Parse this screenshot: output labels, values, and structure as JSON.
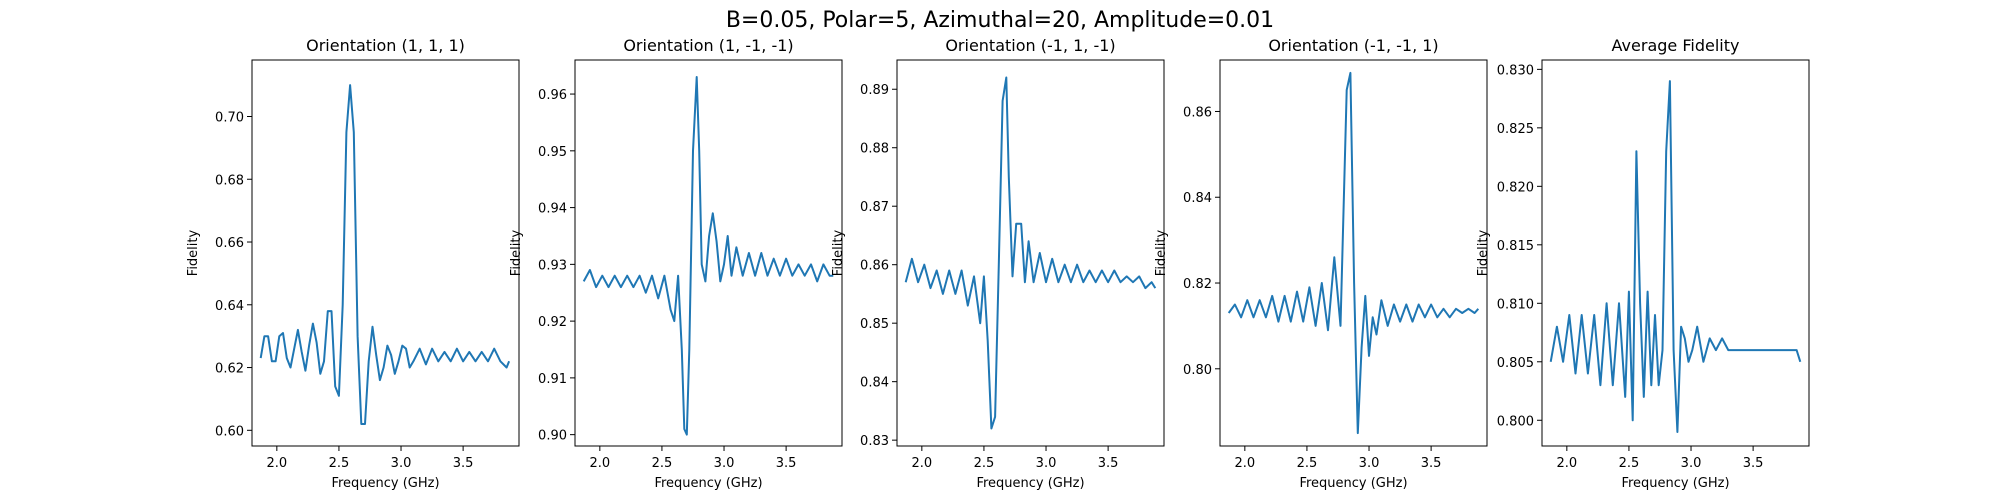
{
  "figure": {
    "suptitle": "B=0.05, Polar=5, Azimuthal=20, Amplitude=0.01",
    "line_color": "#1f77b4"
  },
  "chart_data": [
    {
      "type": "line",
      "title": "Orientation (1, 1, 1)",
      "xlabel": "Frequency (GHz)",
      "ylabel": "Fidelity",
      "xlim": [
        1.8,
        3.95
      ],
      "ylim": [
        0.595,
        0.718
      ],
      "xticks": [
        2.0,
        2.5,
        3.0,
        3.5
      ],
      "yticks": [
        0.6,
        0.62,
        0.64,
        0.66,
        0.68,
        0.7
      ],
      "ytick_labels": [
        "0.60",
        "0.62",
        "0.64",
        "0.66",
        "0.68",
        "0.70"
      ],
      "grid": false,
      "x": [
        1.87,
        1.9,
        1.93,
        1.96,
        1.99,
        2.02,
        2.05,
        2.08,
        2.11,
        2.14,
        2.17,
        2.2,
        2.23,
        2.26,
        2.29,
        2.32,
        2.35,
        2.38,
        2.41,
        2.44,
        2.47,
        2.5,
        2.53,
        2.56,
        2.59,
        2.62,
        2.65,
        2.68,
        2.71,
        2.74,
        2.77,
        2.8,
        2.83,
        2.86,
        2.89,
        2.92,
        2.95,
        2.98,
        3.01,
        3.04,
        3.07,
        3.1,
        3.15,
        3.2,
        3.25,
        3.3,
        3.35,
        3.4,
        3.45,
        3.5,
        3.55,
        3.6,
        3.65,
        3.7,
        3.75,
        3.8,
        3.85,
        3.87
      ],
      "y": [
        0.623,
        0.63,
        0.63,
        0.622,
        0.622,
        0.63,
        0.631,
        0.623,
        0.62,
        0.626,
        0.632,
        0.625,
        0.619,
        0.627,
        0.634,
        0.628,
        0.618,
        0.622,
        0.638,
        0.638,
        0.614,
        0.611,
        0.64,
        0.695,
        0.71,
        0.695,
        0.63,
        0.602,
        0.602,
        0.622,
        0.633,
        0.624,
        0.616,
        0.62,
        0.627,
        0.624,
        0.618,
        0.622,
        0.627,
        0.626,
        0.62,
        0.622,
        0.626,
        0.621,
        0.626,
        0.622,
        0.625,
        0.622,
        0.626,
        0.622,
        0.625,
        0.622,
        0.625,
        0.622,
        0.626,
        0.622,
        0.62,
        0.622
      ]
    },
    {
      "type": "line",
      "title": "Orientation (1, -1, -1)",
      "xlabel": "Frequency (GHz)",
      "ylabel": "Fidelity",
      "xlim": [
        1.8,
        3.95
      ],
      "ylim": [
        0.898,
        0.966
      ],
      "xticks": [
        2.0,
        2.5,
        3.0,
        3.5
      ],
      "yticks": [
        0.9,
        0.91,
        0.92,
        0.93,
        0.94,
        0.95,
        0.96
      ],
      "ytick_labels": [
        "0.90",
        "0.91",
        "0.92",
        "0.93",
        "0.94",
        "0.95",
        "0.96"
      ],
      "grid": false,
      "x": [
        1.87,
        1.92,
        1.97,
        2.02,
        2.07,
        2.12,
        2.17,
        2.22,
        2.27,
        2.32,
        2.37,
        2.42,
        2.47,
        2.52,
        2.57,
        2.6,
        2.63,
        2.66,
        2.68,
        2.7,
        2.72,
        2.75,
        2.78,
        2.8,
        2.82,
        2.85,
        2.88,
        2.91,
        2.94,
        2.97,
        3.0,
        3.03,
        3.06,
        3.1,
        3.15,
        3.2,
        3.25,
        3.3,
        3.35,
        3.4,
        3.45,
        3.5,
        3.55,
        3.6,
        3.65,
        3.7,
        3.75,
        3.8,
        3.85,
        3.88
      ],
      "y": [
        0.927,
        0.929,
        0.926,
        0.928,
        0.926,
        0.928,
        0.926,
        0.928,
        0.926,
        0.928,
        0.925,
        0.928,
        0.924,
        0.928,
        0.922,
        0.92,
        0.928,
        0.915,
        0.901,
        0.9,
        0.915,
        0.95,
        0.963,
        0.95,
        0.93,
        0.927,
        0.935,
        0.939,
        0.934,
        0.927,
        0.93,
        0.935,
        0.928,
        0.933,
        0.928,
        0.932,
        0.928,
        0.932,
        0.928,
        0.931,
        0.928,
        0.931,
        0.928,
        0.93,
        0.928,
        0.93,
        0.927,
        0.93,
        0.928,
        0.928
      ]
    },
    {
      "type": "line",
      "title": "Orientation (-1, 1, -1)",
      "xlabel": "Frequency (GHz)",
      "ylabel": "Fidelity",
      "xlim": [
        1.8,
        3.95
      ],
      "ylim": [
        0.829,
        0.895
      ],
      "xticks": [
        2.0,
        2.5,
        3.0,
        3.5
      ],
      "yticks": [
        0.83,
        0.84,
        0.85,
        0.86,
        0.87,
        0.88,
        0.89
      ],
      "ytick_labels": [
        "0.83",
        "0.84",
        "0.85",
        "0.86",
        "0.87",
        "0.88",
        "0.89"
      ],
      "grid": false,
      "x": [
        1.87,
        1.92,
        1.97,
        2.02,
        2.07,
        2.12,
        2.17,
        2.22,
        2.27,
        2.32,
        2.37,
        2.42,
        2.47,
        2.5,
        2.53,
        2.56,
        2.59,
        2.62,
        2.65,
        2.68,
        2.7,
        2.73,
        2.76,
        2.8,
        2.83,
        2.86,
        2.9,
        2.95,
        3.0,
        3.05,
        3.1,
        3.15,
        3.2,
        3.25,
        3.3,
        3.35,
        3.4,
        3.45,
        3.5,
        3.55,
        3.6,
        3.65,
        3.7,
        3.75,
        3.8,
        3.85,
        3.88
      ],
      "y": [
        0.857,
        0.861,
        0.857,
        0.86,
        0.856,
        0.859,
        0.855,
        0.859,
        0.855,
        0.859,
        0.853,
        0.858,
        0.85,
        0.858,
        0.847,
        0.832,
        0.834,
        0.86,
        0.888,
        0.892,
        0.875,
        0.858,
        0.867,
        0.867,
        0.857,
        0.864,
        0.857,
        0.862,
        0.857,
        0.861,
        0.857,
        0.86,
        0.857,
        0.86,
        0.857,
        0.859,
        0.857,
        0.859,
        0.857,
        0.859,
        0.857,
        0.858,
        0.857,
        0.858,
        0.856,
        0.857,
        0.856
      ]
    },
    {
      "type": "line",
      "title": "Orientation (-1, -1, 1)",
      "xlabel": "Frequency (GHz)",
      "ylabel": "Fidelity",
      "xlim": [
        1.8,
        3.95
      ],
      "ylim": [
        0.782,
        0.872
      ],
      "xticks": [
        2.0,
        2.5,
        3.0,
        3.5
      ],
      "yticks": [
        0.8,
        0.82,
        0.84,
        0.86
      ],
      "ytick_labels": [
        "0.80",
        "0.82",
        "0.84",
        "0.86"
      ],
      "grid": false,
      "x": [
        1.87,
        1.92,
        1.97,
        2.02,
        2.07,
        2.12,
        2.17,
        2.22,
        2.27,
        2.32,
        2.37,
        2.42,
        2.47,
        2.52,
        2.57,
        2.62,
        2.67,
        2.72,
        2.77,
        2.82,
        2.85,
        2.88,
        2.91,
        2.94,
        2.97,
        3.0,
        3.03,
        3.06,
        3.1,
        3.15,
        3.2,
        3.25,
        3.3,
        3.35,
        3.4,
        3.45,
        3.5,
        3.55,
        3.6,
        3.65,
        3.7,
        3.75,
        3.8,
        3.85,
        3.88
      ],
      "y": [
        0.813,
        0.815,
        0.812,
        0.816,
        0.812,
        0.816,
        0.812,
        0.817,
        0.811,
        0.817,
        0.811,
        0.818,
        0.811,
        0.819,
        0.81,
        0.82,
        0.809,
        0.826,
        0.81,
        0.865,
        0.869,
        0.82,
        0.785,
        0.805,
        0.817,
        0.803,
        0.812,
        0.808,
        0.816,
        0.81,
        0.815,
        0.811,
        0.815,
        0.811,
        0.815,
        0.812,
        0.815,
        0.812,
        0.814,
        0.812,
        0.814,
        0.813,
        0.814,
        0.813,
        0.814
      ]
    },
    {
      "type": "line",
      "title": "Average Fidelity",
      "xlabel": "Frequency (GHz)",
      "ylabel": "Fidelity",
      "xlim": [
        1.8,
        3.95
      ],
      "ylim": [
        0.7978,
        0.8308
      ],
      "xticks": [
        2.0,
        2.5,
        3.0,
        3.5
      ],
      "yticks": [
        0.8,
        0.805,
        0.81,
        0.815,
        0.82,
        0.825,
        0.83
      ],
      "ytick_labels": [
        "0.800",
        "0.805",
        "0.810",
        "0.815",
        "0.820",
        "0.825",
        "0.830"
      ],
      "grid": false,
      "x": [
        1.87,
        1.92,
        1.97,
        2.02,
        2.07,
        2.12,
        2.17,
        2.22,
        2.27,
        2.32,
        2.37,
        2.42,
        2.47,
        2.5,
        2.53,
        2.56,
        2.59,
        2.62,
        2.65,
        2.68,
        2.71,
        2.74,
        2.77,
        2.8,
        2.83,
        2.86,
        2.89,
        2.92,
        2.95,
        2.98,
        3.01,
        3.05,
        3.1,
        3.15,
        3.2,
        3.25,
        3.3,
        3.35,
        3.4,
        3.45,
        3.5,
        3.55,
        3.6,
        3.65,
        3.7,
        3.75,
        3.8,
        3.85,
        3.88
      ],
      "y": [
        0.805,
        0.808,
        0.805,
        0.809,
        0.804,
        0.809,
        0.804,
        0.809,
        0.803,
        0.81,
        0.803,
        0.81,
        0.802,
        0.811,
        0.8,
        0.823,
        0.81,
        0.802,
        0.811,
        0.803,
        0.809,
        0.803,
        0.806,
        0.823,
        0.829,
        0.806,
        0.799,
        0.808,
        0.807,
        0.805,
        0.806,
        0.808,
        0.805,
        0.807,
        0.806,
        0.807,
        0.806,
        0.806,
        0.806,
        0.806,
        0.806,
        0.806,
        0.806,
        0.806,
        0.806,
        0.806,
        0.806,
        0.806,
        0.805
      ]
    }
  ]
}
